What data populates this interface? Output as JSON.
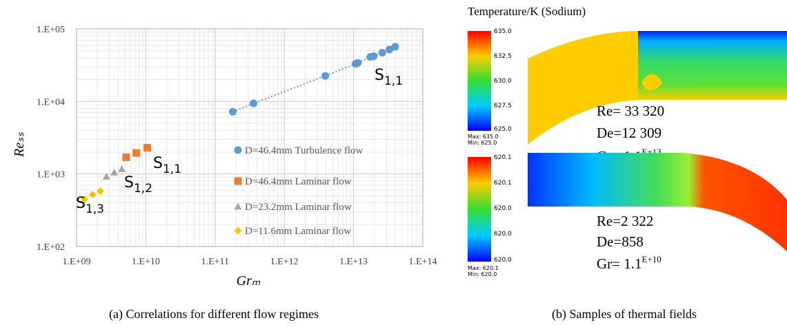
{
  "chart_data": {
    "type": "scatter",
    "x_label": "Grₘ",
    "y_label": "Reₛₛ",
    "xscale": "log",
    "yscale": "log",
    "xlim": [
      1000000000.0,
      100000000000000.0
    ],
    "ylim": [
      100,
      100000
    ],
    "xticks": [
      {
        "value": 1000000000.0,
        "label": "1.E+09"
      },
      {
        "value": 10000000000.0,
        "label": "1.E+10"
      },
      {
        "value": 100000000000.0,
        "label": "1.E+11"
      },
      {
        "value": 1000000000000.0,
        "label": "1.E+12"
      },
      {
        "value": 10000000000000.0,
        "label": "1.E+13"
      },
      {
        "value": 100000000000000.0,
        "label": "1.E+14"
      }
    ],
    "yticks": [
      {
        "value": 100,
        "label": "1.E+02"
      },
      {
        "value": 1000,
        "label": "1.E+03"
      },
      {
        "value": 10000,
        "label": "1.E+04"
      },
      {
        "value": 100000,
        "label": "1.E+05"
      }
    ],
    "grid": true,
    "minor_grid": true,
    "legend": "lower right",
    "series": [
      {
        "name": "D=46.4mm Turbulence flow",
        "color": "#5b9bd5",
        "marker": "circle",
        "trendline": true,
        "x": [
          180000000000.0,
          360000000000.0,
          3900000000000.0,
          10700000000000.0,
          11500000000000.0,
          17400000000000.0,
          19500000000000.0,
          26000000000000.0,
          33000000000000.0,
          40000000000000.0
        ],
        "values": [
          7200,
          9400,
          22500,
          33000,
          34000,
          41000,
          42000,
          47000,
          52000,
          57000
        ]
      },
      {
        "name": "D=46.4mm Laminar flow",
        "color": "#ed7d31",
        "marker": "square",
        "x": [
          5200000000.0,
          7300000000.0,
          10500000000.0
        ],
        "values": [
          1700,
          1950,
          2300
        ]
      },
      {
        "name": "D=23.2mm Laminar flow",
        "color": "#a5a5a5",
        "marker": "triangle",
        "x": [
          2700000000.0,
          3500000000.0,
          4500000000.0
        ],
        "values": [
          920,
          1050,
          1170
        ]
      },
      {
        "name": "D=11.6mm Laminar flow",
        "color": "#ffc000",
        "marker": "diamond",
        "x": [
          1300000000.0,
          1700000000.0,
          2200000000.0
        ],
        "values": [
          450,
          520,
          580
        ]
      }
    ],
    "annotations": [
      {
        "text": "S",
        "sub": "1,1"
      },
      {
        "text": "S",
        "sub": "1,1"
      },
      {
        "text": "S",
        "sub": "1,2"
      },
      {
        "text": "S",
        "sub": "1,3"
      }
    ]
  },
  "thermal_fields": {
    "title": "Temperature/K (Sodium)",
    "top": {
      "scale": [
        "635.0",
        "632.5",
        "630.0",
        "627.5",
        "625.0"
      ],
      "max": "Max: 635.0",
      "min": "Min: 625.0",
      "re": "Re= 33 320",
      "de": "De=12 309",
      "gr": "Gr= 1.1",
      "gr_exp": "E+13"
    },
    "bottom": {
      "scale": [
        "620.1",
        "620.1",
        "620.0",
        "620.0",
        "620.0"
      ],
      "max": "Max: 620.1",
      "min": "Min: 620.0",
      "re": "Re=2 322",
      "de": "De=858",
      "gr": "Gr= 1.1",
      "gr_exp": "E+10"
    }
  },
  "captions": [
    "(a) Correlations for different flow regimes",
    "(b) Samples of thermal fields"
  ]
}
